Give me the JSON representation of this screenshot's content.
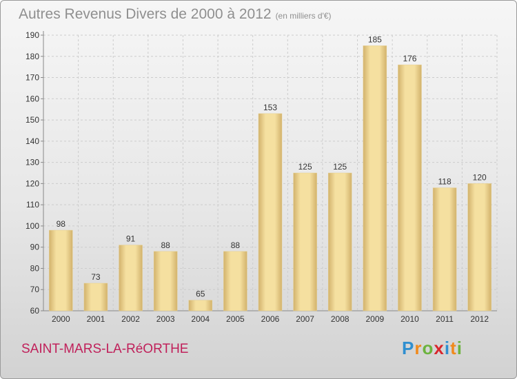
{
  "title": "Autres Revenus Divers de 2000 à 2012",
  "subtitle": "(en milliers d'€)",
  "commune": "SAINT-MARS-LA-RéORTHE",
  "brand": {
    "letters": [
      "P",
      "r",
      "o",
      "x",
      "i",
      "t",
      "i"
    ],
    "colors": [
      "#2f8fd0",
      "#f08a1c",
      "#6cb33e",
      "#d8262c",
      "#2f8fd0",
      "#f08a1c",
      "#6cb33e"
    ]
  },
  "colors": {
    "bar_light": "#f5e0a0",
    "bar_dark": "#d2b26c",
    "grid": "#cccccc",
    "axis_text": "#333333"
  },
  "chart_data": {
    "type": "bar",
    "categories": [
      "2000",
      "2001",
      "2002",
      "2003",
      "2004",
      "2005",
      "2006",
      "2007",
      "2008",
      "2009",
      "2010",
      "2011",
      "2012"
    ],
    "values": [
      98,
      73,
      91,
      88,
      65,
      88,
      153,
      125,
      125,
      185,
      176,
      118,
      120
    ],
    "ylim": [
      60,
      190
    ],
    "yticks": [
      60,
      70,
      80,
      90,
      100,
      110,
      120,
      130,
      140,
      150,
      160,
      170,
      180,
      190
    ],
    "grid": true,
    "data_labels": true
  }
}
